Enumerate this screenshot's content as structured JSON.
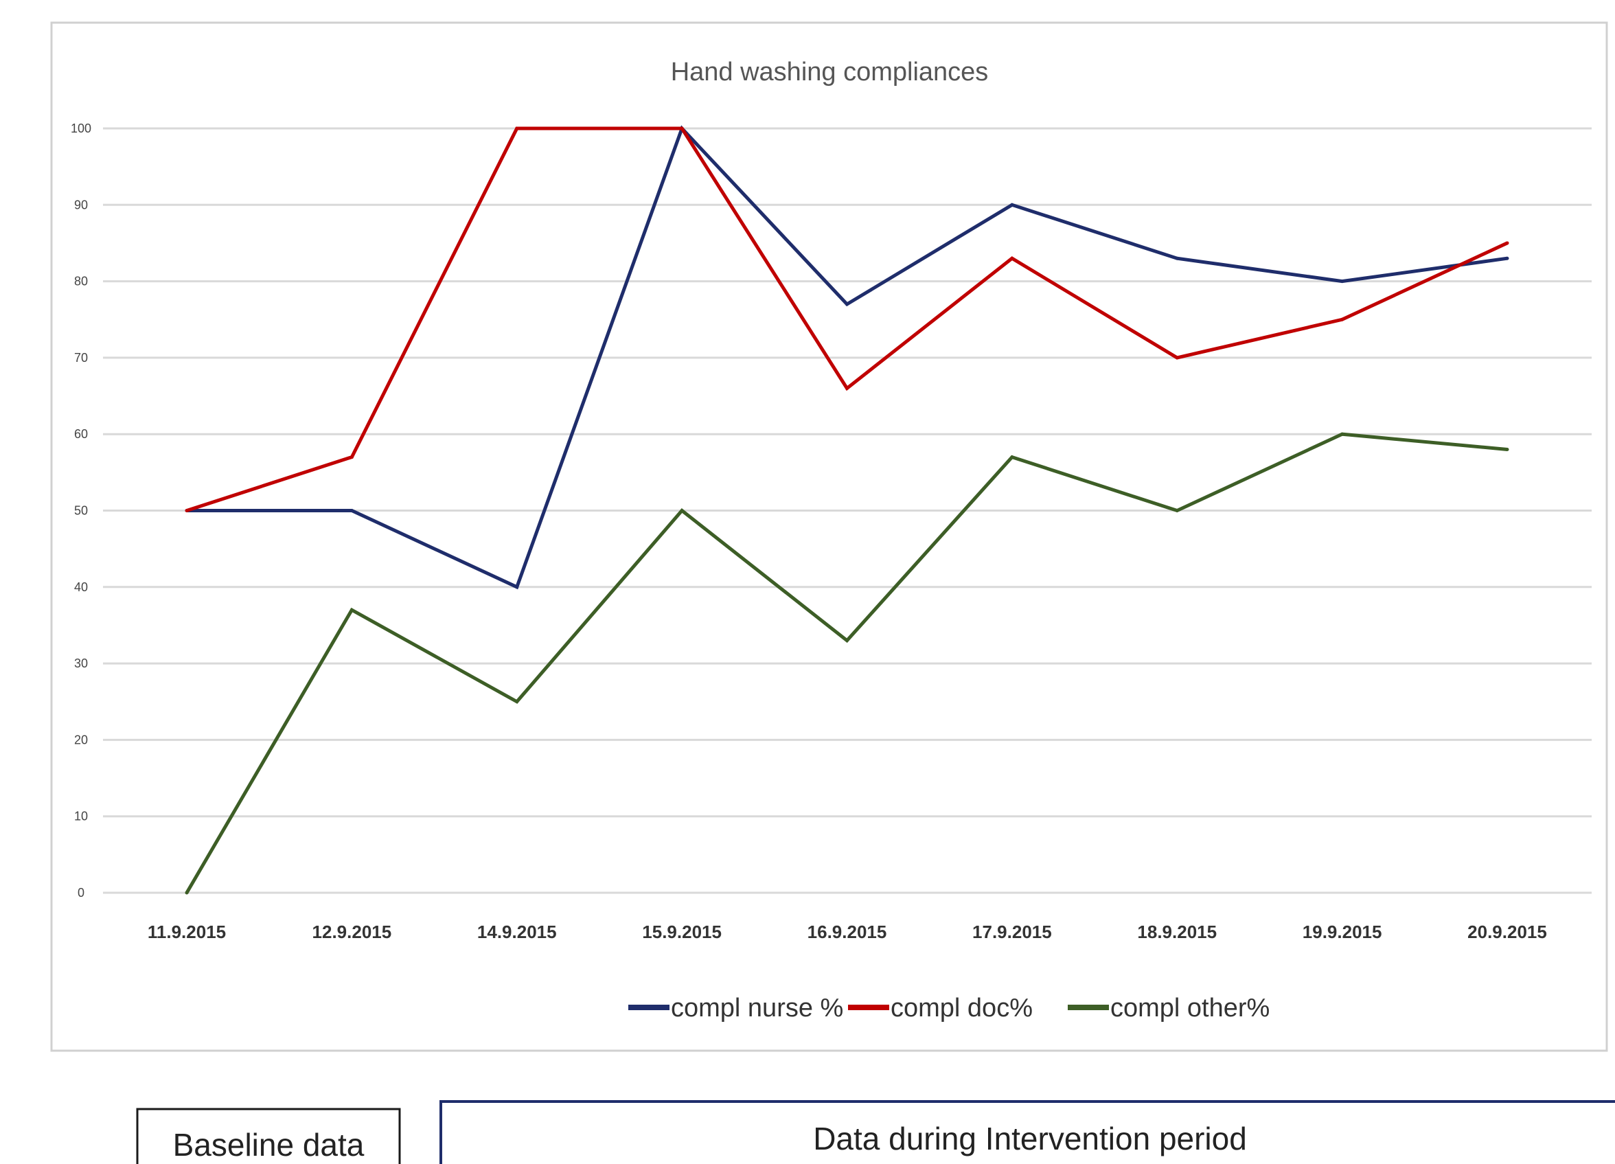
{
  "chart_data": {
    "type": "line",
    "title": "Hand washing compliances",
    "xlabel": "",
    "ylabel": "",
    "ylim": [
      0,
      100
    ],
    "yticks": [
      0,
      10,
      20,
      30,
      40,
      50,
      60,
      70,
      80,
      90,
      100
    ],
    "grid": true,
    "legend": "bottom",
    "categories": [
      "11.9.2015",
      "12.9.2015",
      "14.9.2015",
      "15.9.2015",
      "16.9.2015",
      "17.9.2015",
      "18.9.2015",
      "19.9.2015",
      "20.9.2015"
    ],
    "series": [
      {
        "name": "compl nurse %",
        "color": "#1f2d6b",
        "values": [
          50,
          50,
          40,
          100,
          77,
          90,
          83,
          80,
          83
        ]
      },
      {
        "name": "compl doc%",
        "color": "#c00000",
        "values": [
          50,
          57,
          100,
          100,
          66,
          83,
          70,
          75,
          85
        ]
      },
      {
        "name": "compl other%",
        "color": "#3d5e26",
        "values": [
          0,
          37,
          25,
          50,
          33,
          57,
          50,
          60,
          58
        ]
      }
    ]
  },
  "annotations": {
    "baseline_label": "Baseline data",
    "intervention_label": "Data during Intervention period"
  }
}
